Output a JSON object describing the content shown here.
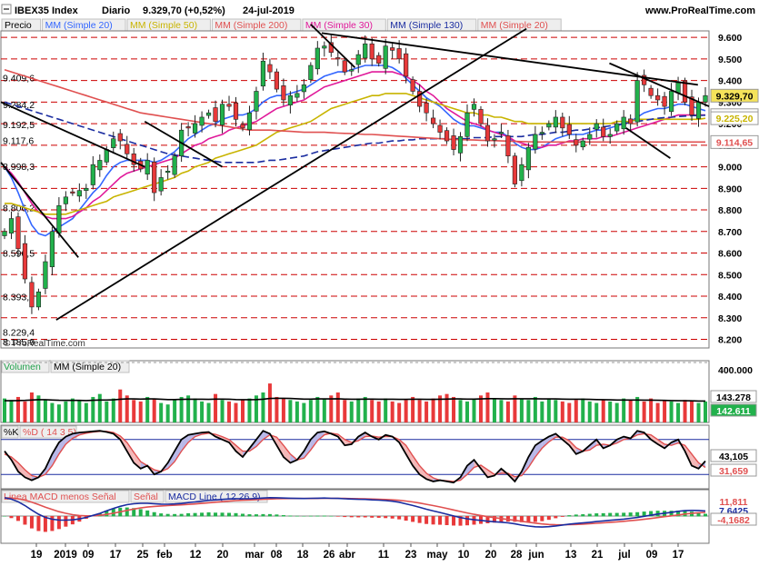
{
  "header": {
    "symbol": "IBEX35 Index",
    "period": "Diario",
    "quote": "9.329,70 (+0,52%)",
    "date": "24-jul-2019",
    "site": "www.ProRealTime.com"
  },
  "colors": {
    "up": "#22b14c",
    "down": "#e8393a",
    "ma20": "#3366ff",
    "ma50": "#c8b400",
    "ma200": "#e05050",
    "ma30": "#e0199a",
    "ma130": "#1a2ca0",
    "grid_red": "#cc0000",
    "trendline": "#000000",
    "price_tag": "#f5e35a"
  },
  "legend": [
    {
      "label": "Precio",
      "color": "#000000"
    },
    {
      "label": "MM (Simple 20)",
      "color": "#3366ff"
    },
    {
      "label": "MM (Simple 50)",
      "color": "#c8b400"
    },
    {
      "label": "MM (Simple 200)",
      "color": "#e05050"
    },
    {
      "label": "MM (Simple 30)",
      "color": "#e0199a"
    },
    {
      "label": "MM (Simple 130)",
      "color": "#1a2ca0"
    },
    {
      "label": "MM (Simple 20)",
      "color": "#e05050"
    }
  ],
  "watermark": "© ProRealTime.com",
  "volume_panel": {
    "title": "Volumen",
    "ma_label": "MM (Simple 20)",
    "scale_top": "400.000",
    "value1": "143.278",
    "value2": "142.611"
  },
  "stoch_panel": {
    "label_k": "%K",
    "label_d": "%D ( 14 3 5)",
    "value1": "43,105",
    "value2": "31,659"
  },
  "macd_panel": {
    "label1": "Linea MACD menos Señal",
    "label2": "Señal",
    "label3": "MACD Line ( 12 26 9)",
    "value1": "11,811",
    "value2": "7,6425",
    "value3": "-4,1682"
  },
  "chart_data": {
    "type": "candlestick",
    "title": "IBEX35 Index",
    "ylim": [
      8160,
      9630
    ],
    "y_ticks": [
      9600,
      9500,
      9400,
      9300,
      9200,
      9100,
      9000,
      8900,
      8800,
      8700,
      8600,
      8500,
      8400,
      8300,
      8200
    ],
    "y_tick_labels": [
      "9.600",
      "9.500",
      "9.400",
      "9.300",
      "9.200",
      "9.100",
      "9.000",
      "8.900",
      "8.800",
      "8.700",
      "8.600",
      "8.500",
      "8.400",
      "8.300",
      "8.200"
    ],
    "level_labels": [
      {
        "value": 9409.6,
        "label": "9.409,6"
      },
      {
        "value": 9284.2,
        "label": "9.284,2"
      },
      {
        "value": 9192.5,
        "label": "9.192,5"
      },
      {
        "value": 9117.6,
        "label": "9.117,6"
      },
      {
        "value": 8998.3,
        "label": "8.998,3"
      },
      {
        "value": 8806.2,
        "label": "8.806,2"
      },
      {
        "value": 8596.5,
        "label": "8.596,5"
      },
      {
        "value": 8393.5,
        "label": "8.393,5"
      },
      {
        "value": 8229.4,
        "label": "8.229,4"
      },
      {
        "value": 8185.9,
        "label": "8.185,9"
      }
    ],
    "price_tags": [
      {
        "value": 9329.7,
        "label": "9.329,70",
        "color": "#f5e35a",
        "text_color": "#000000"
      },
      {
        "value": 9239.06,
        "label": "9.239,06",
        "color": "#ffffff",
        "text_color": "#1a2ca0"
      },
      {
        "value": 9225.2,
        "label": "9.225,20",
        "color": "#ffffff",
        "text_color": "#c8b400"
      },
      {
        "value": 9114.65,
        "label": "9.114,65",
        "color": "#ffffff",
        "text_color": "#e05050"
      }
    ],
    "x_labels": [
      "19",
      "2019",
      "09",
      "17",
      "25",
      "feb",
      "12",
      "20",
      "mar",
      "08",
      "18",
      "26",
      "abr",
      "11",
      "23",
      "may",
      "10",
      "20",
      "28",
      "jun",
      "13",
      "21",
      "jul",
      "09",
      "17"
    ],
    "closes": [
      8700,
      8760,
      8620,
      8480,
      8350,
      8420,
      8560,
      8700,
      8820,
      8860,
      8880,
      8890,
      8900,
      9010,
      9030,
      9080,
      9130,
      9120,
      9060,
      9010,
      8990,
      9030,
      8880,
      8950,
      8980,
      9050,
      9170,
      9180,
      9200,
      9230,
      9250,
      9210,
      9290,
      9280,
      9220,
      9180,
      9250,
      9350,
      9490,
      9440,
      9360,
      9310,
      9330,
      9340,
      9380,
      9470,
      9550,
      9560,
      9530,
      9500,
      9440,
      9450,
      9520,
      9570,
      9500,
      9480,
      9560,
      9540,
      9500,
      9420,
      9350,
      9280,
      9250,
      9200,
      9160,
      9120,
      9080,
      9140,
      9250,
      9290,
      9200,
      9120,
      9130,
      9160,
      9050,
      8920,
      9010,
      9090,
      9150,
      9160,
      9200,
      9230,
      9180,
      9150,
      9100,
      9120,
      9150,
      9200,
      9140,
      9150,
      9200,
      9230,
      9200,
      9400,
      9380,
      9330,
      9310,
      9280,
      9350,
      9390,
      9300,
      9240,
      9300,
      9330
    ],
    "series": [
      {
        "name": "MM (Simple 20)",
        "values": [
          9000,
          8950,
          8880,
          8800,
          8730,
          8690,
          8680,
          8700,
          8720,
          8740,
          8760,
          8800,
          8840,
          8880,
          8910,
          8960,
          9000,
          9020,
          9030,
          9030,
          9030,
          9030,
          9020,
          9030,
          9050,
          9070,
          9100,
          9130,
          9150,
          9170,
          9190,
          9200,
          9220,
          9230,
          9240,
          9240,
          9250,
          9270,
          9300,
          9320,
          9330,
          9330,
          9340,
          9350,
          9360,
          9380,
          9400,
          9420,
          9430,
          9440,
          9440,
          9450,
          9460,
          9470,
          9470,
          9470,
          9470,
          9460,
          9440,
          9410,
          9380,
          9350,
          9320,
          9300,
          9280,
          9250,
          9220,
          9200,
          9190,
          9190,
          9180,
          9170,
          9160,
          9160,
          9140,
          9110,
          9090,
          9080,
          9080,
          9090,
          9110,
          9130,
          9140,
          9150,
          9150,
          9150,
          9160,
          9170,
          9170,
          9180,
          9190,
          9200,
          9210,
          9230,
          9250,
          9260,
          9270,
          9270,
          9280,
          9290,
          9290,
          9280,
          9270,
          9260
        ]
      },
      {
        "name": "MM (Simple 30)",
        "values": [
          9000,
          8970,
          8930,
          8880,
          8830,
          8790,
          8770,
          8760,
          8760,
          8760,
          8770,
          8790,
          8810,
          8840,
          8860,
          8890,
          8920,
          8950,
          8970,
          8980,
          8990,
          9000,
          9010,
          9020,
          9030,
          9040,
          9060,
          9080,
          9100,
          9110,
          9130,
          9140,
          9150,
          9170,
          9180,
          9190,
          9200,
          9210,
          9230,
          9250,
          9270,
          9280,
          9290,
          9300,
          9310,
          9330,
          9350,
          9370,
          9380,
          9390,
          9400,
          9410,
          9420,
          9430,
          9440,
          9440,
          9440,
          9440,
          9430,
          9420,
          9400,
          9380,
          9350,
          9330,
          9300,
          9270,
          9250,
          9230,
          9210,
          9200,
          9190,
          9170,
          9160,
          9150,
          9140,
          9120,
          9110,
          9100,
          9090,
          9090,
          9100,
          9100,
          9110,
          9120,
          9120,
          9130,
          9130,
          9130,
          9140,
          9140,
          9150,
          9160,
          9170,
          9180,
          9190,
          9200,
          9210,
          9220,
          9230,
          9240,
          9240,
          9240,
          9240,
          9240
        ]
      },
      {
        "name": "MM (Simple 50)",
        "values": [
          8830,
          8830,
          8820,
          8810,
          8800,
          8790,
          8780,
          8780,
          8780,
          8780,
          8790,
          8800,
          8810,
          8820,
          8830,
          8840,
          8860,
          8870,
          8880,
          8890,
          8900,
          8910,
          8920,
          8930,
          8940,
          8950,
          8970,
          8980,
          9000,
          9010,
          9020,
          9040,
          9050,
          9060,
          9070,
          9080,
          9090,
          9100,
          9120,
          9140,
          9160,
          9170,
          9180,
          9190,
          9200,
          9210,
          9230,
          9250,
          9270,
          9280,
          9290,
          9300,
          9310,
          9320,
          9330,
          9330,
          9340,
          9340,
          9340,
          9340,
          9330,
          9320,
          9310,
          9300,
          9290,
          9280,
          9270,
          9260,
          9250,
          9250,
          9240,
          9240,
          9230,
          9230,
          9220,
          9210,
          9210,
          9200,
          9200,
          9200,
          9200,
          9200,
          9200,
          9200,
          9200,
          9200,
          9200,
          9200,
          9200,
          9200,
          9210,
          9210,
          9210,
          9220,
          9220,
          9220,
          9220,
          9220,
          9220,
          9220,
          9220,
          9220,
          9220,
          9225
        ]
      },
      {
        "name": "MM (Simple 130)",
        "values": [
          9300,
          9290,
          9280,
          9270,
          9260,
          9250,
          9240,
          9230,
          9220,
          9210,
          9200,
          9190,
          9180,
          9170,
          9160,
          9150,
          9140,
          9130,
          9120,
          9110,
          9100,
          9090,
          9080,
          9070,
          9060,
          9055,
          9050,
          9045,
          9040,
          9035,
          9030,
          9025,
          9020,
          9020,
          9020,
          9020,
          9020,
          9020,
          9025,
          9030,
          9030,
          9035,
          9040,
          9045,
          9050,
          9060,
          9070,
          9075,
          9080,
          9085,
          9090,
          9095,
          9100,
          9105,
          9110,
          9110,
          9115,
          9120,
          9120,
          9125,
          9125,
          9130,
          9130,
          9130,
          9130,
          9130,
          9130,
          9130,
          9130,
          9135,
          9135,
          9135,
          9140,
          9140,
          9140,
          9140,
          9140,
          9145,
          9150,
          9150,
          9155,
          9160,
          9160,
          9165,
          9170,
          9170,
          9175,
          9180,
          9185,
          9190,
          9195,
          9200,
          9205,
          9210,
          9215,
          9220,
          9225,
          9228,
          9230,
          9233,
          9235,
          9237,
          9238,
          9239
        ]
      },
      {
        "name": "MM (Simple 200)",
        "values": [
          9450,
          9440,
          9430,
          9420,
          9410,
          9400,
          9390,
          9380,
          9370,
          9360,
          9350,
          9340,
          9330,
          9320,
          9310,
          9300,
          9290,
          9280,
          9270,
          9260,
          9250,
          9245,
          9240,
          9235,
          9230,
          9225,
          9220,
          9215,
          9210,
          9205,
          9200,
          9195,
          9190,
          9185,
          9180,
          9175,
          9170,
          9170,
          9170,
          9170,
          9168,
          9166,
          9164,
          9162,
          9160,
          9160,
          9160,
          9160,
          9158,
          9156,
          9155,
          9154,
          9152,
          9150,
          9150,
          9148,
          9146,
          9144,
          9142,
          9140,
          9138,
          9136,
          9134,
          9132,
          9130,
          9128,
          9127,
          9126,
          9125,
          9124,
          9123,
          9122,
          9121,
          9120,
          9119,
          9118,
          9117,
          9116,
          9115,
          9115,
          9115,
          9115,
          9115,
          9115,
          9115,
          9115,
          9115,
          9115,
          9115,
          9115,
          9115,
          9115,
          9115,
          9115,
          9115,
          9115,
          9115,
          9115,
          9115,
          9115,
          9115,
          9115,
          9115,
          9115
        ]
      }
    ],
    "volume": [
      160,
      150,
      170,
      140,
      200,
      180,
      150,
      130,
      120,
      140,
      160,
      150,
      130,
      170,
      190,
      140,
      160,
      220,
      180,
      150,
      140,
      170,
      160,
      130,
      120,
      150,
      170,
      180,
      160,
      140,
      130,
      190,
      150,
      140,
      130,
      150,
      160,
      180,
      200,
      260,
      170,
      160,
      150,
      140,
      130,
      150,
      170,
      160,
      180,
      200,
      150,
      140,
      160,
      170,
      150,
      140,
      160,
      140,
      130,
      150,
      170,
      150,
      140,
      160,
      180,
      190,
      170,
      150,
      140,
      160,
      180,
      200,
      160,
      150,
      140,
      180,
      160,
      150,
      170,
      140,
      160,
      150,
      140,
      130,
      150,
      160,
      140,
      130,
      150,
      140,
      130,
      160,
      150,
      170,
      140,
      160,
      130,
      150,
      140,
      130,
      150,
      140,
      130,
      140
    ],
    "volume_ma": [
      145,
      145,
      146,
      147,
      150,
      152,
      152,
      150,
      148,
      147,
      147,
      147,
      146,
      148,
      150,
      150,
      151,
      155,
      157,
      157,
      156,
      157,
      157,
      155,
      153,
      153,
      154,
      155,
      155,
      155,
      154,
      156,
      156,
      155,
      153,
      152,
      152,
      153,
      155,
      160,
      161,
      161,
      160,
      158,
      156,
      156,
      157,
      157,
      157,
      158,
      156,
      155,
      155,
      156,
      156,
      155,
      155,
      155,
      154,
      154,
      155,
      155,
      154,
      154,
      155,
      156,
      157,
      157,
      156,
      156,
      157,
      159,
      159,
      158,
      157,
      158,
      158,
      158,
      158,
      157,
      157,
      157,
      156,
      155,
      155,
      155,
      154,
      153,
      152,
      151,
      150,
      150,
      150,
      150,
      149,
      149,
      148,
      147,
      146,
      145,
      145,
      144,
      143,
      143
    ],
    "stoch_k": [
      60,
      45,
      25,
      15,
      10,
      15,
      30,
      55,
      75,
      85,
      90,
      92,
      93,
      94,
      95,
      93,
      90,
      80,
      60,
      40,
      30,
      35,
      20,
      25,
      40,
      60,
      80,
      88,
      90,
      92,
      93,
      85,
      80,
      75,
      60,
      50,
      65,
      80,
      95,
      90,
      70,
      50,
      40,
      45,
      60,
      80,
      92,
      94,
      90,
      85,
      70,
      72,
      85,
      92,
      85,
      80,
      88,
      85,
      75,
      55,
      35,
      20,
      12,
      8,
      10,
      8,
      6,
      15,
      35,
      45,
      30,
      15,
      18,
      30,
      20,
      8,
      25,
      50,
      70,
      78,
      85,
      90,
      80,
      70,
      55,
      60,
      70,
      80,
      65,
      70,
      80,
      85,
      82,
      95,
      92,
      80,
      72,
      65,
      75,
      80,
      60,
      35,
      30,
      43
    ],
    "stoch_d": [
      55,
      50,
      40,
      28,
      18,
      15,
      20,
      35,
      55,
      72,
      82,
      88,
      91,
      93,
      94,
      94,
      92,
      86,
      75,
      58,
      42,
      35,
      28,
      25,
      30,
      42,
      60,
      75,
      85,
      89,
      91,
      89,
      85,
      80,
      70,
      60,
      60,
      68,
      80,
      88,
      84,
      70,
      55,
      45,
      48,
      62,
      78,
      88,
      91,
      89,
      80,
      75,
      78,
      85,
      86,
      84,
      85,
      85,
      80,
      70,
      52,
      35,
      22,
      14,
      10,
      9,
      8,
      10,
      20,
      32,
      36,
      28,
      20,
      22,
      22,
      16,
      18,
      32,
      50,
      65,
      76,
      84,
      84,
      78,
      66,
      60,
      62,
      70,
      72,
      70,
      74,
      80,
      82,
      88,
      90,
      88,
      80,
      72,
      70,
      74,
      70,
      55,
      40,
      32
    ]
  }
}
